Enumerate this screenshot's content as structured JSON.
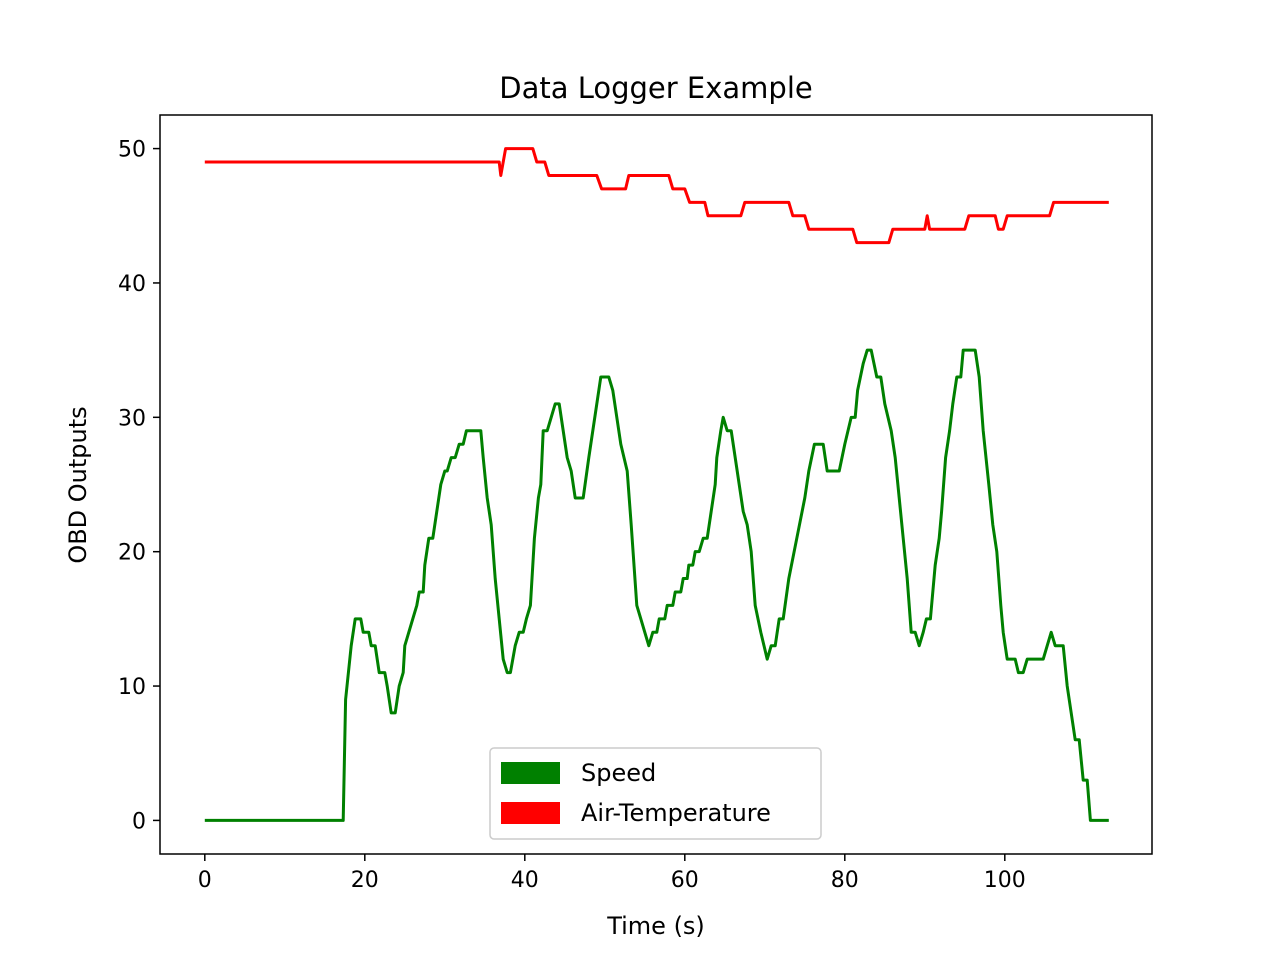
{
  "chart_data": {
    "type": "line",
    "title": "Data Logger Example",
    "xlabel": "Time (s)",
    "ylabel": "OBD Outputs",
    "xlim": [
      -5.6,
      118.4
    ],
    "ylim": [
      -2.5,
      52.5
    ],
    "xticks": [
      0,
      20,
      40,
      60,
      80,
      100
    ],
    "yticks": [
      0,
      10,
      20,
      30,
      40,
      50
    ],
    "grid": false,
    "legend_position": "bottom-center",
    "series": [
      {
        "name": "Speed",
        "color": "#008000",
        "points": [
          [
            0,
            0
          ],
          [
            17.3,
            0
          ],
          [
            17.6,
            9
          ],
          [
            18.3,
            13
          ],
          [
            18.8,
            15
          ],
          [
            19.5,
            15
          ],
          [
            19.8,
            14
          ],
          [
            20.5,
            14
          ],
          [
            20.8,
            13
          ],
          [
            21.3,
            13
          ],
          [
            21.8,
            11
          ],
          [
            22.5,
            11
          ],
          [
            22.8,
            10
          ],
          [
            23.3,
            8
          ],
          [
            23.8,
            8
          ],
          [
            24.3,
            10
          ],
          [
            24.8,
            11
          ],
          [
            25.0,
            13
          ],
          [
            26.0,
            15
          ],
          [
            26.5,
            16
          ],
          [
            26.8,
            17
          ],
          [
            27.3,
            17
          ],
          [
            27.5,
            19
          ],
          [
            28.0,
            21
          ],
          [
            28.5,
            21
          ],
          [
            29.0,
            23
          ],
          [
            29.5,
            25
          ],
          [
            30.0,
            26
          ],
          [
            30.3,
            26
          ],
          [
            30.8,
            27
          ],
          [
            31.3,
            27
          ],
          [
            31.8,
            28
          ],
          [
            32.3,
            28
          ],
          [
            32.7,
            29
          ],
          [
            34.0,
            29
          ],
          [
            34.5,
            29
          ],
          [
            34.8,
            27
          ],
          [
            35.3,
            24
          ],
          [
            35.8,
            22
          ],
          [
            36.3,
            18
          ],
          [
            36.8,
            15
          ],
          [
            37.3,
            12
          ],
          [
            37.8,
            11
          ],
          [
            38.2,
            11
          ],
          [
            38.8,
            13
          ],
          [
            39.3,
            14
          ],
          [
            39.8,
            14
          ],
          [
            40.2,
            15
          ],
          [
            40.7,
            16
          ],
          [
            41.2,
            21
          ],
          [
            41.7,
            24
          ],
          [
            42.0,
            25
          ],
          [
            42.3,
            29
          ],
          [
            42.8,
            29
          ],
          [
            43.3,
            30
          ],
          [
            43.8,
            31
          ],
          [
            44.3,
            31
          ],
          [
            44.8,
            29
          ],
          [
            45.3,
            27
          ],
          [
            45.8,
            26
          ],
          [
            46.3,
            24
          ],
          [
            47.3,
            24
          ],
          [
            48.0,
            27
          ],
          [
            48.5,
            29
          ],
          [
            49.0,
            31
          ],
          [
            49.5,
            33
          ],
          [
            50.5,
            33
          ],
          [
            51.0,
            32
          ],
          [
            51.5,
            30
          ],
          [
            52.0,
            28
          ],
          [
            52.8,
            26
          ],
          [
            53.3,
            22
          ],
          [
            54.0,
            16
          ],
          [
            54.5,
            15
          ],
          [
            55.0,
            14
          ],
          [
            55.5,
            13
          ],
          [
            56.0,
            14
          ],
          [
            56.5,
            14
          ],
          [
            56.8,
            15
          ],
          [
            57.5,
            15
          ],
          [
            57.8,
            16
          ],
          [
            58.5,
            16
          ],
          [
            58.8,
            17
          ],
          [
            59.5,
            17
          ],
          [
            59.8,
            18
          ],
          [
            60.3,
            18
          ],
          [
            60.5,
            19
          ],
          [
            61.0,
            19
          ],
          [
            61.3,
            20
          ],
          [
            61.8,
            20
          ],
          [
            62.3,
            21
          ],
          [
            62.8,
            21
          ],
          [
            63.3,
            23
          ],
          [
            63.8,
            25
          ],
          [
            64.0,
            27
          ],
          [
            64.5,
            29
          ],
          [
            64.8,
            30
          ],
          [
            65.3,
            29
          ],
          [
            65.8,
            29
          ],
          [
            66.3,
            27
          ],
          [
            66.8,
            25
          ],
          [
            67.3,
            23
          ],
          [
            67.8,
            22
          ],
          [
            68.3,
            20
          ],
          [
            68.8,
            16
          ],
          [
            69.5,
            14
          ],
          [
            70.3,
            12
          ],
          [
            70.8,
            13
          ],
          [
            71.3,
            13
          ],
          [
            71.8,
            15
          ],
          [
            72.3,
            15
          ],
          [
            73.0,
            18
          ],
          [
            74.0,
            21
          ],
          [
            75.0,
            24
          ],
          [
            75.5,
            26
          ],
          [
            76.2,
            28
          ],
          [
            77.3,
            28
          ],
          [
            77.8,
            26
          ],
          [
            79.3,
            26
          ],
          [
            80.0,
            28
          ],
          [
            80.8,
            30
          ],
          [
            81.3,
            30
          ],
          [
            81.6,
            32
          ],
          [
            82.3,
            34
          ],
          [
            82.8,
            35
          ],
          [
            83.3,
            35
          ],
          [
            84.0,
            33
          ],
          [
            84.5,
            33
          ],
          [
            85.0,
            31
          ],
          [
            85.8,
            29
          ],
          [
            86.3,
            27
          ],
          [
            86.8,
            24
          ],
          [
            87.3,
            21
          ],
          [
            87.8,
            18
          ],
          [
            88.3,
            14
          ],
          [
            88.8,
            14
          ],
          [
            89.3,
            13
          ],
          [
            89.8,
            14
          ],
          [
            90.2,
            15
          ],
          [
            90.7,
            15
          ],
          [
            91.3,
            19
          ],
          [
            91.8,
            21
          ],
          [
            92.1,
            23
          ],
          [
            92.6,
            27
          ],
          [
            93.1,
            29
          ],
          [
            93.5,
            31
          ],
          [
            94.0,
            33
          ],
          [
            94.5,
            33
          ],
          [
            94.8,
            35
          ],
          [
            96.3,
            35
          ],
          [
            96.8,
            33
          ],
          [
            97.3,
            29
          ],
          [
            98.0,
            25
          ],
          [
            98.5,
            22
          ],
          [
            99.0,
            20
          ],
          [
            99.5,
            16
          ],
          [
            99.8,
            14
          ],
          [
            100.3,
            12
          ],
          [
            101.3,
            12
          ],
          [
            101.7,
            11
          ],
          [
            102.3,
            11
          ],
          [
            102.8,
            12
          ],
          [
            104.8,
            12
          ],
          [
            105.3,
            13
          ],
          [
            105.8,
            14
          ],
          [
            106.3,
            13
          ],
          [
            107.3,
            13
          ],
          [
            107.8,
            10
          ],
          [
            108.3,
            8
          ],
          [
            108.8,
            6
          ],
          [
            109.3,
            6
          ],
          [
            109.8,
            3
          ],
          [
            110.3,
            3
          ],
          [
            110.7,
            0
          ],
          [
            113.0,
            0
          ]
        ]
      },
      {
        "name": "Air-Temperature",
        "color": "#ff0000",
        "points": [
          [
            0,
            49
          ],
          [
            36.8,
            49
          ],
          [
            37.0,
            48
          ],
          [
            37.6,
            50
          ],
          [
            41.0,
            50
          ],
          [
            41.5,
            49
          ],
          [
            42.5,
            49
          ],
          [
            43.0,
            48
          ],
          [
            49.0,
            48
          ],
          [
            49.6,
            47
          ],
          [
            52.6,
            47
          ],
          [
            53.0,
            48
          ],
          [
            58.0,
            48
          ],
          [
            58.5,
            47
          ],
          [
            60.0,
            47
          ],
          [
            60.6,
            46
          ],
          [
            62.5,
            46
          ],
          [
            62.9,
            45
          ],
          [
            67.0,
            45
          ],
          [
            67.5,
            46
          ],
          [
            73.0,
            46
          ],
          [
            73.5,
            45
          ],
          [
            75.0,
            45
          ],
          [
            75.5,
            44
          ],
          [
            81.0,
            44
          ],
          [
            81.5,
            43
          ],
          [
            85.5,
            43
          ],
          [
            86.0,
            44
          ],
          [
            90.0,
            44
          ],
          [
            90.3,
            45
          ],
          [
            90.6,
            44
          ],
          [
            95.0,
            44
          ],
          [
            95.5,
            45
          ],
          [
            98.8,
            45
          ],
          [
            99.2,
            44
          ],
          [
            99.8,
            44
          ],
          [
            100.3,
            45
          ],
          [
            105.6,
            45
          ],
          [
            106.1,
            46
          ],
          [
            113.0,
            46
          ]
        ]
      }
    ]
  }
}
